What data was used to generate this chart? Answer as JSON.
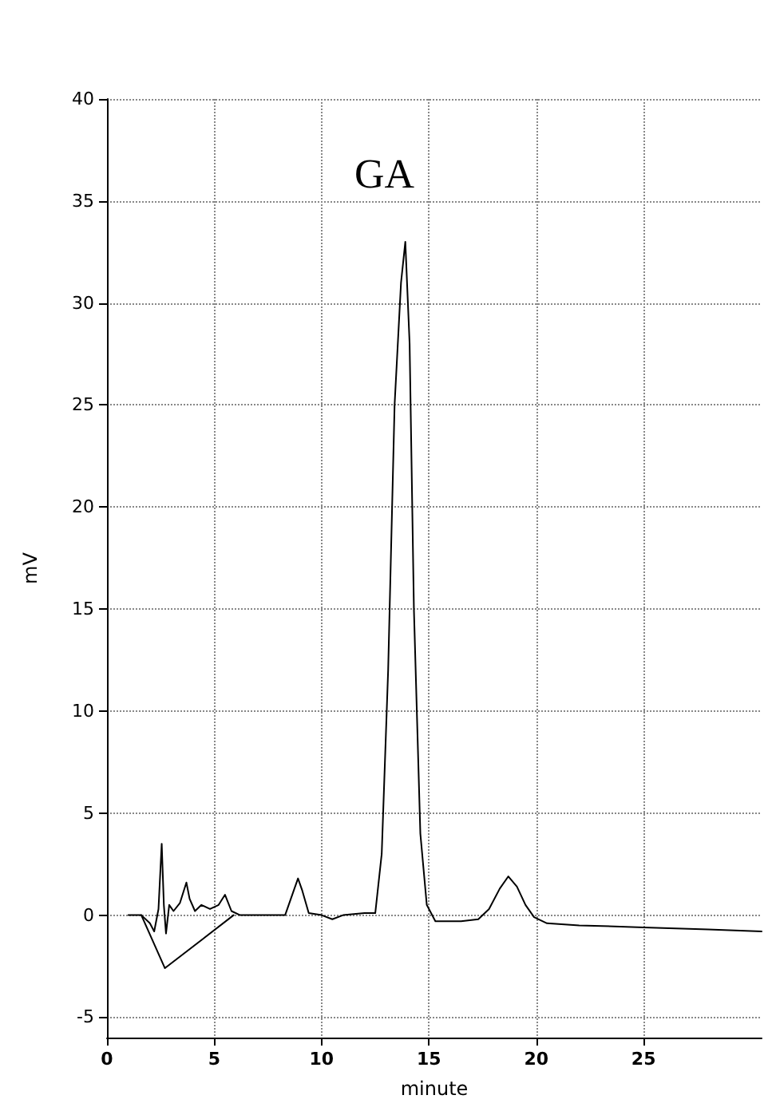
{
  "chart_data": {
    "type": "line",
    "xlabel": "minute",
    "ylabel": "mV",
    "annotations": [
      "GA"
    ],
    "xlim": [
      0,
      30.5
    ],
    "xticks": [
      0,
      5,
      10,
      15,
      20,
      25
    ],
    "ylim": [
      -6,
      40
    ],
    "yticks": [
      -5,
      0,
      5,
      10,
      15,
      20,
      25,
      30,
      35,
      40
    ],
    "grid": true,
    "marker": "none",
    "line_style": "solid",
    "series": [
      {
        "color": "#000000",
        "x": [
          1.0,
          1.6,
          2.0,
          2.2,
          2.4,
          2.55,
          2.65,
          2.75,
          2.9,
          3.1,
          3.4,
          3.7,
          3.85,
          4.1,
          4.4,
          4.8,
          5.2,
          5.5,
          5.8,
          6.2,
          7.5,
          8.3,
          8.7,
          8.9,
          9.1,
          9.4,
          10.0,
          10.5,
          11.0,
          12.0,
          12.5,
          12.8,
          13.1,
          13.4,
          13.7,
          13.9,
          14.1,
          14.3,
          14.6,
          14.9,
          15.3,
          16.5,
          17.3,
          17.8,
          18.3,
          18.7,
          19.1,
          19.5,
          19.9,
          20.5,
          22,
          25,
          28,
          30.5
        ],
        "values": [
          0,
          0,
          -0.4,
          -0.8,
          0.3,
          3.5,
          0.5,
          -0.9,
          0.5,
          0.2,
          0.6,
          1.6,
          0.8,
          0.2,
          0.5,
          0.3,
          0.5,
          1.0,
          0.2,
          0,
          0,
          0,
          1.2,
          1.8,
          1.2,
          0.1,
          0,
          -0.2,
          0,
          0.1,
          0.1,
          3,
          12,
          25,
          31,
          33,
          28,
          15,
          4,
          0.5,
          -0.3,
          -0.3,
          -0.2,
          0.3,
          1.3,
          1.9,
          1.4,
          0.5,
          -0.1,
          -0.4,
          -0.5,
          -0.6,
          -0.7,
          -0.8
        ]
      },
      {
        "color": "#000000",
        "x": [
          1.6,
          2.7,
          5.9
        ],
        "values": [
          0,
          -2.6,
          0
        ]
      }
    ]
  }
}
